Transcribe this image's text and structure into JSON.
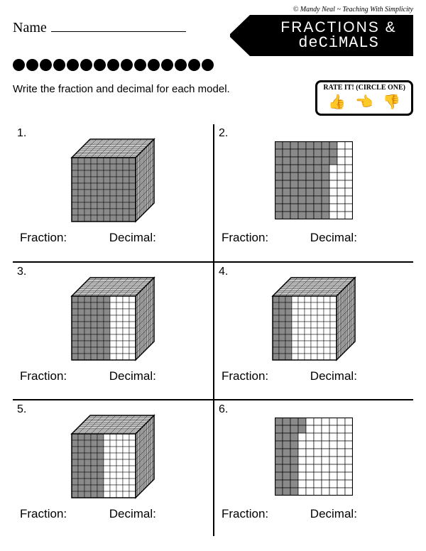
{
  "credit": "© Mandy Neal ~ Teaching With Simplicity",
  "name_label": "Name",
  "title_line1": "FRACTIONS &",
  "title_line2": "deCiMALS",
  "dot_count": 15,
  "instructions": "Write the fraction and decimal for each model.",
  "rate": {
    "title": "Rate it! (Circle One)"
  },
  "labels": {
    "fraction": "Fraction:",
    "decimal": "Decimal:"
  },
  "problems": [
    {
      "num": "1.",
      "type": "cube",
      "shaded_cols": 10
    },
    {
      "num": "2.",
      "type": "flat",
      "shaded_cols": 7,
      "extra_rows": 3
    },
    {
      "num": "3.",
      "type": "cube",
      "shaded_cols": 6
    },
    {
      "num": "4.",
      "type": "cube",
      "shaded_cols": 3
    },
    {
      "num": "5.",
      "type": "cube",
      "shaded_cols": 5
    },
    {
      "num": "6.",
      "type": "flat",
      "shaded_cols": 3,
      "extra_rows": 2
    }
  ],
  "style": {
    "grid_size": 10,
    "shaded_fill": "#8a8a8a",
    "unshaded_fill": "#ffffff",
    "stroke": "#000000",
    "cube_side_fill": "#b0b0b0",
    "cube_top_fill": "#cccccc"
  }
}
